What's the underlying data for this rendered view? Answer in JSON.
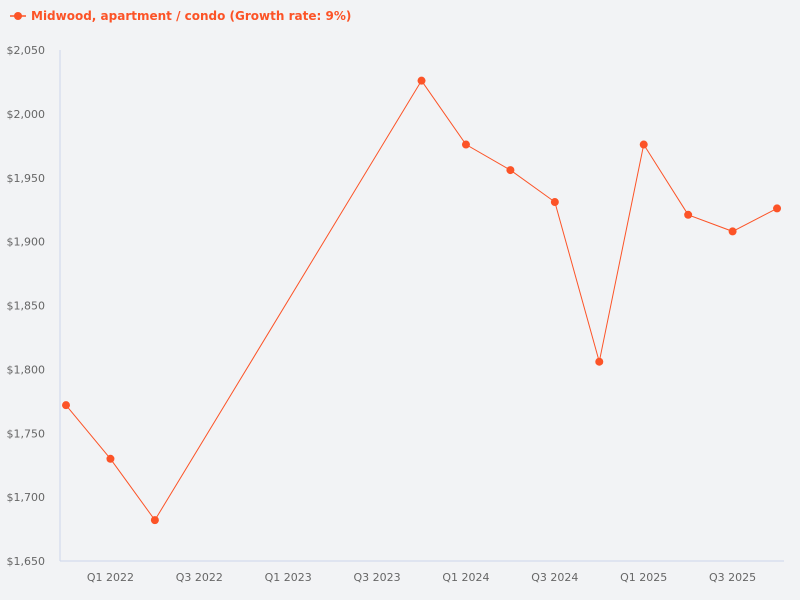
{
  "chart_data": {
    "type": "line",
    "title": "",
    "xlabel": "",
    "ylabel": "",
    "legend_position": "top-left",
    "grid": false,
    "series": [
      {
        "name": "Midwood, apartment / condo (Growth rate: 9%)",
        "color": "#fc5327",
        "points": [
          {
            "x": "Q4 2021",
            "y": 1772
          },
          {
            "x": "Q1 2022",
            "y": 1730
          },
          {
            "x": "Q2 2022",
            "y": 1682
          },
          {
            "x": "Q4 2023",
            "y": 2026
          },
          {
            "x": "Q1 2024",
            "y": 1976
          },
          {
            "x": "Q2 2024",
            "y": 1956
          },
          {
            "x": "Q3 2024",
            "y": 1931
          },
          {
            "x": "Q4 2024",
            "y": 1806
          },
          {
            "x": "Q1 2025",
            "y": 1976
          },
          {
            "x": "Q2 2025",
            "y": 1921
          },
          {
            "x": "Q3 2025",
            "y": 1908
          },
          {
            "x": "Q4 2025",
            "y": 1926
          }
        ]
      }
    ],
    "x_ticks": [
      "Q1 2022",
      "Q3 2022",
      "Q1 2023",
      "Q3 2023",
      "Q1 2024",
      "Q3 2024",
      "Q1 2025",
      "Q3 2025"
    ],
    "y_ticks": [
      "$1,650",
      "$1,700",
      "$1,750",
      "$1,800",
      "$1,850",
      "$1,900",
      "$1,950",
      "$2,000",
      "$2,050"
    ],
    "y_tick_values": [
      1650,
      1700,
      1750,
      1800,
      1850,
      1900,
      1950,
      2000,
      2050
    ],
    "ylim": [
      1650,
      2050
    ],
    "xlim": [
      "Q4 2021",
      "Q4 2025"
    ]
  }
}
